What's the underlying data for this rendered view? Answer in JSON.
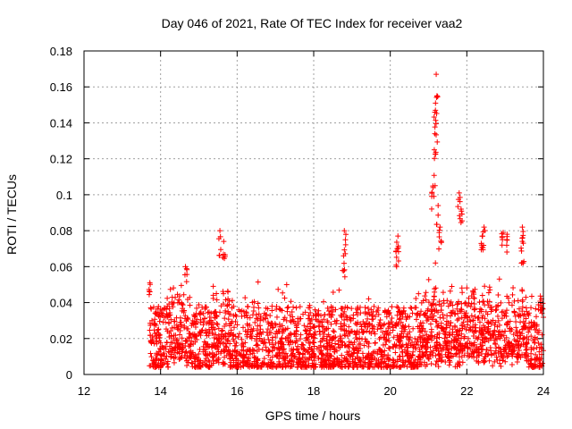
{
  "chart_data": {
    "type": "scatter",
    "title": "Day 046 of 2021, Rate Of TEC Index for receiver vaa2",
    "xlabel": "GPS time / hours",
    "ylabel": "ROTI / TECUs",
    "xlim": [
      12,
      24
    ],
    "ylim": [
      0,
      0.18
    ],
    "xticks": [
      "12",
      "14",
      "16",
      "18",
      "20",
      "22",
      "24"
    ],
    "yticks": [
      "0",
      "0.02",
      "0.04",
      "0.06",
      "0.08",
      "0.1",
      "0.12",
      "0.14",
      "0.16",
      "0.18"
    ],
    "grid": true,
    "marker": "+",
    "color": "#ff0000",
    "series": [
      {
        "name": "ROTI",
        "note": "Dense point cloud from ~13.7 h to 24 h; baseline values mostly 0.005-0.035 TECU",
        "peaks": [
          {
            "x": 13.72,
            "y": 0.051
          },
          {
            "x": 14.65,
            "y": 0.06
          },
          {
            "x": 15.55,
            "y": 0.08
          },
          {
            "x": 15.65,
            "y": 0.074
          },
          {
            "x": 18.8,
            "y": 0.08
          },
          {
            "x": 18.78,
            "y": 0.066
          },
          {
            "x": 20.2,
            "y": 0.077
          },
          {
            "x": 20.18,
            "y": 0.07
          },
          {
            "x": 21.2,
            "y": 0.167
          },
          {
            "x": 21.18,
            "y": 0.147
          },
          {
            "x": 21.22,
            "y": 0.155
          },
          {
            "x": 21.15,
            "y": 0.125
          },
          {
            "x": 21.12,
            "y": 0.104
          },
          {
            "x": 21.25,
            "y": 0.094
          },
          {
            "x": 21.3,
            "y": 0.082
          },
          {
            "x": 21.8,
            "y": 0.101
          },
          {
            "x": 21.85,
            "y": 0.092
          },
          {
            "x": 22.45,
            "y": 0.082
          },
          {
            "x": 22.4,
            "y": 0.077
          },
          {
            "x": 22.95,
            "y": 0.079
          },
          {
            "x": 23.05,
            "y": 0.078
          },
          {
            "x": 23.45,
            "y": 0.082
          },
          {
            "x": 23.45,
            "y": 0.074
          },
          {
            "x": 23.95,
            "y": 0.042
          }
        ]
      }
    ]
  }
}
